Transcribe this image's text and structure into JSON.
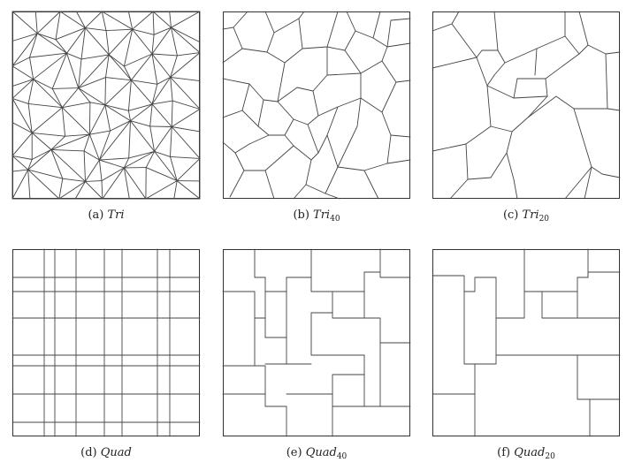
{
  "panels": [
    {
      "id": "a",
      "label": "(a)",
      "name": "Tri",
      "sub": ""
    },
    {
      "id": "b",
      "label": "(b)",
      "name": "Tri",
      "sub": "40"
    },
    {
      "id": "c",
      "label": "(c)",
      "name": "Tri",
      "sub": "20"
    },
    {
      "id": "d",
      "label": "(d)",
      "name": "Quad",
      "sub": ""
    },
    {
      "id": "e",
      "label": "(e)",
      "name": "Quad",
      "sub": "40"
    },
    {
      "id": "f",
      "label": "(f)",
      "name": "Quad",
      "sub": "20"
    }
  ]
}
